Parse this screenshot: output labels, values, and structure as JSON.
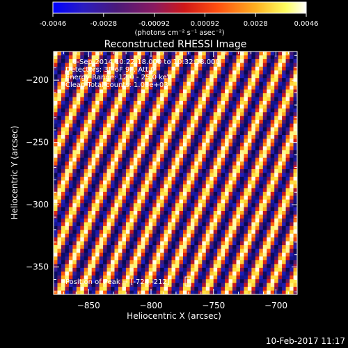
{
  "colorbar": {
    "ticks": [
      "-0.0046",
      "-0.0028",
      "-0.00092",
      "0.00092",
      "0.0028",
      "0.0046"
    ],
    "units_label": "(photons cm⁻² s⁻¹ asec⁻²)",
    "range": [
      -0.0046,
      0.0046
    ]
  },
  "chart_data": {
    "type": "heatmap",
    "title": "Reconstructed RHESSI Image",
    "xlabel": "Heliocentric X (arcsec)",
    "ylabel": "Heliocentric Y (arcsec)",
    "xlim": [
      -878,
      -683
    ],
    "ylim": [
      -372,
      -177
    ],
    "xticks": [
      -850,
      -800,
      -750,
      -700
    ],
    "yticks": [
      -200,
      -250,
      -300,
      -350
    ],
    "colormap": "IDL red-temperature (blue → purple → red → yellow → white)",
    "pattern": "diagonal stripes (single-subcollimator fringe pattern)",
    "annotations": [
      "6-Sep-2014 10:22:18.000 to 10:32:18.000",
      "Detectors: 3F 6F 9F, Att 0",
      "Energy Range: 12.0 - 25.0 keV",
      "Clean    Total counts: 1.03e+03"
    ],
    "peak_label": "Position of Peak = [-724,-212]"
  },
  "footer": {
    "timestamp": "10-Feb-2017 11:17"
  }
}
